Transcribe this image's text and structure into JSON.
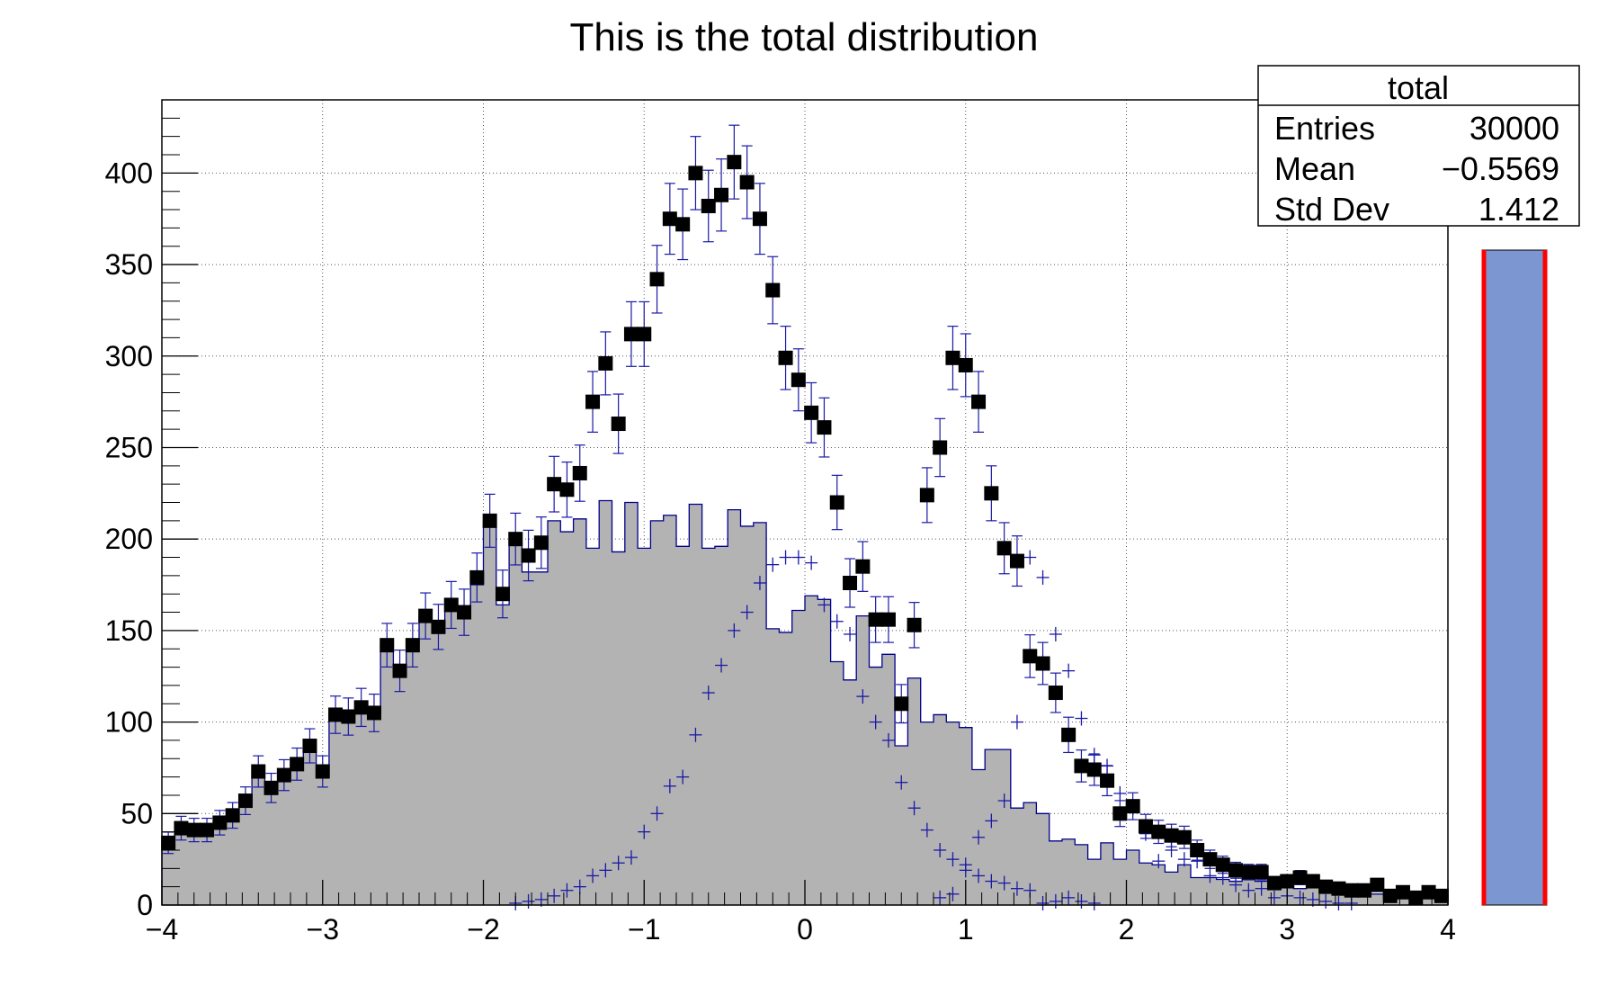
{
  "chart_data": {
    "type": "bar",
    "title": "This is the total distribution",
    "xlabel": "",
    "ylabel": "",
    "xlim": [
      -4,
      4
    ],
    "ylim": [
      0,
      440
    ],
    "bins": 100,
    "grid": true,
    "x_ticks": [
      -4,
      -3,
      -2,
      -1,
      0,
      1,
      2,
      3,
      4
    ],
    "x_tick_labels": [
      "−4",
      "−3",
      "−2",
      "−1",
      "0",
      "1",
      "2",
      "3",
      "4"
    ],
    "y_ticks": [
      0,
      50,
      100,
      150,
      200,
      250,
      300,
      350,
      400
    ],
    "y_tick_labels": [
      "0",
      "50",
      "100",
      "150",
      "200",
      "250",
      "300",
      "350",
      "400"
    ],
    "stats_box": {
      "title": "total",
      "rows": [
        {
          "label": "Entries",
          "value": "30000"
        },
        {
          "label": "Mean",
          "value": "−0.5569"
        },
        {
          "label": "Std Dev",
          "value": "1.412"
        }
      ]
    },
    "series": [
      {
        "style": "filled-histogram",
        "color": "#b3b3b3",
        "line_color": "#00008b",
        "values": [
          34,
          42,
          41,
          41,
          45,
          49,
          57,
          73,
          64,
          71,
          77,
          87,
          73,
          104,
          103,
          108,
          105,
          142,
          128,
          142,
          158,
          152,
          164,
          160,
          175,
          210,
          164,
          198,
          182,
          182,
          210,
          204,
          211,
          195,
          221,
          193,
          220,
          195,
          210,
          213,
          196,
          219,
          195,
          196,
          216,
          207,
          209,
          151,
          149,
          161,
          169,
          167,
          133,
          123,
          158,
          130,
          137,
          87,
          124,
          100,
          104,
          100,
          97,
          74,
          85,
          85,
          53,
          56,
          50,
          35,
          36,
          33,
          25,
          34,
          25,
          30,
          23,
          22,
          18,
          22,
          15,
          15,
          14,
          13,
          14,
          13,
          11,
          14,
          9,
          12,
          7,
          9,
          7,
          5,
          6,
          4,
          5,
          5,
          6,
          5
        ]
      },
      {
        "style": "crosses",
        "color": "#1a1aa6",
        "values": [
          0,
          0,
          0,
          0,
          0,
          0,
          0,
          0,
          0,
          0,
          0,
          0,
          0,
          0,
          0,
          0,
          0,
          0,
          0,
          0,
          0,
          0,
          0,
          0,
          0,
          0,
          0,
          1,
          2,
          3,
          5,
          8,
          10,
          16,
          19,
          23,
          26,
          40,
          50,
          65,
          70,
          93,
          116,
          131,
          150,
          160,
          176,
          186,
          190,
          190,
          187,
          164,
          155,
          148,
          114,
          100,
          90,
          67,
          53,
          41,
          30,
          25,
          19,
          16,
          13,
          12,
          9,
          8,
          1,
          2,
          4,
          2,
          1,
          0,
          0,
          0,
          0,
          0,
          0,
          0,
          0,
          0,
          0,
          0,
          0,
          0,
          0,
          0,
          0,
          0,
          0,
          0,
          0,
          0,
          0,
          0,
          0,
          0,
          0,
          0
        ]
      },
      {
        "style": "crosses",
        "color": "#1a1aa6",
        "values": [
          0,
          0,
          0,
          0,
          0,
          0,
          0,
          0,
          0,
          0,
          0,
          0,
          0,
          0,
          0,
          0,
          0,
          0,
          0,
          0,
          0,
          0,
          0,
          0,
          0,
          0,
          0,
          0,
          0,
          0,
          0,
          0,
          0,
          0,
          0,
          0,
          0,
          0,
          0,
          0,
          0,
          0,
          0,
          0,
          0,
          0,
          0,
          0,
          0,
          0,
          0,
          0,
          0,
          0,
          0,
          0,
          0,
          0,
          0,
          0,
          4,
          6,
          22,
          37,
          46,
          57,
          100,
          190,
          179,
          148,
          128,
          102,
          82,
          76,
          61,
          53,
          39,
          24,
          30,
          25,
          24,
          16,
          15,
          11,
          8,
          9,
          4,
          5,
          4,
          3,
          2,
          1,
          1,
          0,
          0,
          0,
          0,
          0,
          0,
          0
        ]
      },
      {
        "style": "markers-with-errors",
        "color": "#000000",
        "error_color": "#1a1aa6",
        "values": [
          34,
          42,
          41,
          41,
          45,
          49,
          57,
          73,
          64,
          71,
          77,
          87,
          73,
          104,
          103,
          108,
          105,
          142,
          128,
          142,
          158,
          152,
          164,
          160,
          179,
          210,
          170,
          200,
          191,
          198,
          230,
          227,
          236,
          275,
          296,
          263,
          312,
          312,
          342,
          375,
          372,
          400,
          382,
          388,
          406,
          395,
          375,
          336,
          299,
          287,
          269,
          261,
          220,
          176,
          185,
          156,
          156,
          110,
          153,
          224,
          250,
          299,
          295,
          275,
          225,
          195,
          188,
          136,
          132,
          116,
          93,
          76,
          74,
          68,
          50,
          54,
          43,
          40,
          38,
          37,
          30,
          25,
          22,
          19,
          18,
          18,
          12,
          13,
          15,
          13,
          10,
          9,
          8,
          8,
          11,
          5,
          7,
          4,
          7,
          5
        ]
      }
    ],
    "side_bar": {
      "fill": "#7b96d1",
      "edge": "#ff0000"
    }
  }
}
